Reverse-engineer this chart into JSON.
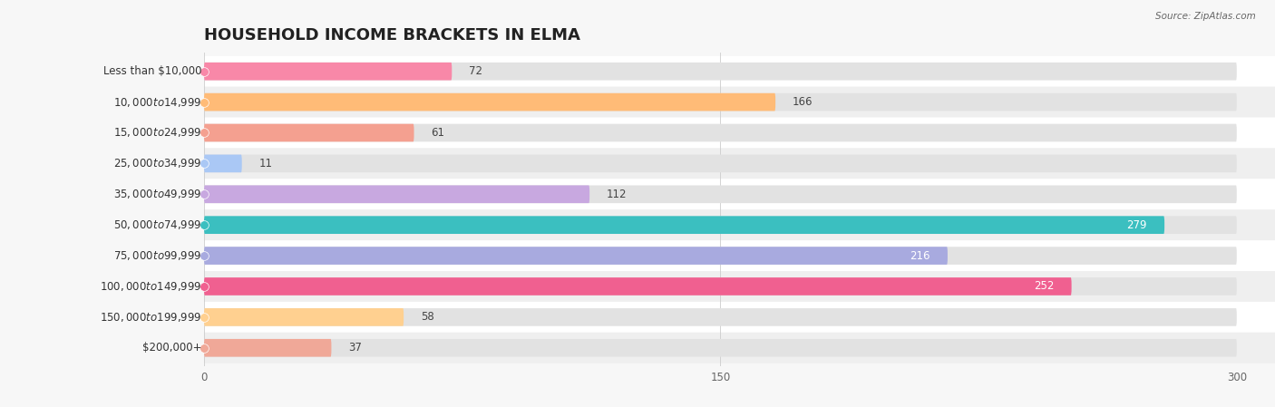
{
  "title": "HOUSEHOLD INCOME BRACKETS IN ELMA",
  "source": "Source: ZipAtlas.com",
  "categories": [
    "Less than $10,000",
    "$10,000 to $14,999",
    "$15,000 to $24,999",
    "$25,000 to $34,999",
    "$35,000 to $49,999",
    "$50,000 to $74,999",
    "$75,000 to $99,999",
    "$100,000 to $149,999",
    "$150,000 to $199,999",
    "$200,000+"
  ],
  "values": [
    72,
    166,
    61,
    11,
    112,
    279,
    216,
    252,
    58,
    37
  ],
  "bar_colors": [
    "#F888A8",
    "#FFBB77",
    "#F4A090",
    "#AAC8F5",
    "#C8A8E0",
    "#3BBFC0",
    "#A8AADF",
    "#F06090",
    "#FFD090",
    "#F0A898"
  ],
  "xlim_max": 300,
  "xticks": [
    0,
    150,
    300
  ],
  "bg_color": "#f7f7f7",
  "row_colors": [
    "#ffffff",
    "#efefef"
  ],
  "bar_bg_color": "#e2e2e2",
  "title_fontsize": 13,
  "label_fontsize": 8.5,
  "value_fontsize": 8.5,
  "bar_height": 0.58
}
